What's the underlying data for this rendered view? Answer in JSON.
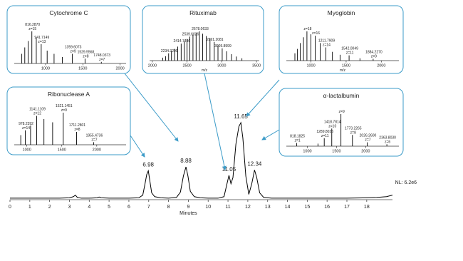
{
  "chart_data": [
    {
      "type": "line",
      "color": "#000000",
      "x": [
        0,
        0.5,
        1,
        1.5,
        2,
        2.5,
        3,
        3.2,
        3.3,
        3.4,
        3.6,
        4,
        4.4,
        4.5,
        4.6,
        5,
        5.5,
        6,
        6.5,
        6.7,
        6.8,
        6.9,
        6.98,
        7.05,
        7.15,
        7.3,
        7.6,
        8,
        8.4,
        8.6,
        8.75,
        8.88,
        8.98,
        9.1,
        9.3,
        9.6,
        10,
        10.5,
        10.8,
        10.95,
        11.05,
        11.15,
        11.25,
        11.4,
        11.55,
        11.65,
        11.75,
        11.9,
        12.05,
        12.2,
        12.34,
        12.45,
        12.6,
        12.8,
        13.2,
        14,
        15,
        16,
        17,
        18,
        18.5,
        19,
        19.3
      ],
      "values": [
        1,
        1,
        1,
        1,
        1,
        1,
        1.5,
        3,
        5,
        2,
        1,
        1,
        1.5,
        2.5,
        1.5,
        1,
        1,
        1,
        1.5,
        5,
        18,
        32,
        37,
        25,
        8,
        3,
        1.5,
        1,
        2,
        9,
        30,
        42,
        30,
        10,
        3,
        1.5,
        1,
        1,
        3,
        20,
        31,
        20,
        28,
        72,
        95,
        100,
        80,
        30,
        6,
        20,
        38,
        28,
        8,
        2,
        1,
        1,
        1,
        1,
        1,
        1.5,
        2,
        3,
        5
      ],
      "peaks": [
        6.98,
        8.88,
        11.05,
        11.65,
        12.34
      ],
      "xlim": [
        0,
        19.3
      ],
      "ylim": [
        0,
        100
      ],
      "xticks": [
        0,
        1,
        2,
        3,
        4,
        5,
        6,
        7,
        8,
        9,
        10,
        11,
        12,
        13,
        14,
        15,
        16,
        17,
        18
      ],
      "xlabel": "Minutes",
      "annotation": "NL: 6.2e6"
    },
    {
      "type": "stem",
      "title": "Cytochrome C",
      "color": "#000000",
      "x": [
        681.3,
        721.3,
        766.3,
        816.287,
        875.6,
        941.7149,
        1021.4,
        1114.2,
        1225.5,
        1359.6073,
        1529.5568,
        1748.0373
      ],
      "values": [
        30,
        50,
        70,
        100,
        80,
        60,
        40,
        30,
        20,
        30,
        15,
        5
      ],
      "x_labels": [
        null,
        null,
        null,
        "816.2870",
        null,
        "941.7149",
        null,
        null,
        null,
        "1359.6073",
        "1529.5568",
        "1748.0373"
      ],
      "charges": [
        null,
        null,
        null,
        "z=15",
        null,
        "z=13",
        null,
        null,
        null,
        "z=9",
        "z=8",
        "z=7"
      ],
      "xlim": [
        580,
        2080
      ],
      "ylim": [
        0,
        100
      ],
      "xticks": [
        1000,
        1500,
        2000
      ]
    },
    {
      "type": "stem",
      "title": "Rituximab",
      "color": "#000000",
      "x": [
        2150,
        2190,
        2234.329,
        2275,
        2320,
        2365,
        2414.7486,
        2460,
        2500,
        2539.6026,
        2585,
        2630,
        2678.0633,
        2725,
        2775,
        2830,
        2891.2081,
        2945,
        3005.8999,
        3070,
        3140,
        3210,
        3290
      ],
      "values": [
        10,
        15,
        25,
        32,
        40,
        48,
        58,
        66,
        74,
        82,
        88,
        94,
        100,
        92,
        84,
        74,
        64,
        52,
        42,
        32,
        22,
        14,
        8
      ],
      "x_labels": [
        null,
        null,
        "2234.3290",
        null,
        null,
        null,
        "2414.7486",
        null,
        null,
        "2539.6026",
        null,
        null,
        "2678.0633",
        null,
        null,
        null,
        "2891.2081",
        null,
        "3005.8999",
        null,
        null,
        null,
        null
      ],
      "xlim": [
        1960,
        3540
      ],
      "ylim": [
        0,
        100
      ],
      "xticks": [
        2000,
        2500,
        3000,
        3500
      ],
      "xlabel": "m/z"
    },
    {
      "type": "stem",
      "title": "Myoglobin",
      "color": "#000000",
      "x": [
        771.5,
        808.2,
        848.6,
        893.2,
        942.7,
        998.1,
        1060.4,
        1131.1,
        1211.7909,
        1305,
        1413.6,
        1542.0049,
        1696.1,
        1884.227
      ],
      "values": [
        25,
        40,
        60,
        80,
        100,
        90,
        85,
        60,
        45,
        30,
        20,
        18,
        8,
        6
      ],
      "x_labels": [
        null,
        null,
        null,
        null,
        null,
        null,
        null,
        null,
        "1211.7909",
        null,
        null,
        "1542.0049",
        null,
        "1884.2270"
      ],
      "charges": [
        null,
        null,
        null,
        null,
        "z=18",
        null,
        "z=16",
        null,
        "z=14",
        null,
        null,
        "z=11",
        null,
        "z=9"
      ],
      "xlim": [
        650,
        2250
      ],
      "ylim": [
        0,
        100
      ],
      "xticks": [
        1000,
        1500,
        2000
      ],
      "xlabel": "m/z"
    },
    {
      "type": "stem",
      "title": "Ribonuclease A",
      "color": "#000000",
      "x": [
        913.1,
        978.2392,
        1053.5,
        1141.1109,
        1244.8,
        1369.2,
        1521.1451,
        1711.2801,
        1955.4736
      ],
      "values": [
        30,
        45,
        60,
        90,
        80,
        70,
        100,
        40,
        8
      ],
      "x_labels": [
        null,
        "978.2392",
        null,
        "1141.1109",
        null,
        null,
        "1521.1451",
        "1711.2801",
        "1955.4736"
      ],
      "charges": [
        null,
        "z=14",
        null,
        "z=12",
        null,
        null,
        "z=9",
        "z=8",
        "z=7"
      ],
      "xlim": [
        820,
        2420
      ],
      "ylim": [
        0,
        100
      ],
      "xticks": [
        1000,
        1500,
        2000
      ]
    },
    {
      "type": "stem",
      "title": "α-lactalbumin",
      "color": "#000000",
      "x": [
        818.1825,
        1182,
        1289.8026,
        1418.7814,
        1576.1,
        1773.2265,
        2026.26,
        2363.803
      ],
      "values": [
        10,
        8,
        25,
        55,
        100,
        35,
        12,
        6
      ],
      "x_labels": [
        "818.1825",
        null,
        "1289.8026",
        "1418.7814",
        null,
        "1773.2265",
        "2026.2600",
        "2363.8030"
      ],
      "charges": [
        "z=1",
        null,
        "z=11",
        "z=10",
        "z=9",
        "z=8",
        "z=7",
        "z=6"
      ],
      "xlim": [
        640,
        2570
      ],
      "ylim": [
        0,
        100
      ],
      "xticks": [
        1000,
        1500,
        2000
      ]
    }
  ]
}
